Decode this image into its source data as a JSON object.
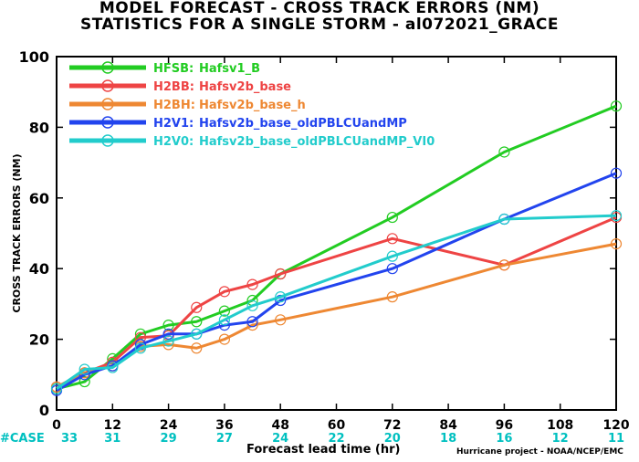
{
  "title_line1": "MODEL FORECAST - CROSS TRACK ERRORS (NM)",
  "title_line2": "STATISTICS FOR A SINGLE STORM - al072021_GRACE",
  "credit": "Hurricane project - NOAA/NCEP/EMC",
  "case_label": "#CASE",
  "case_color": "#00c0c0",
  "chart_data": {
    "type": "line",
    "xlabel": "Forecast lead time (hr)",
    "ylabel": "CROSS TRACK ERRORS (NM)",
    "xlim": [
      0,
      120
    ],
    "ylim": [
      0,
      100
    ],
    "xticks": [
      0,
      12,
      24,
      36,
      48,
      60,
      72,
      84,
      96,
      108,
      120
    ],
    "yticks": [
      0,
      20,
      40,
      60,
      80,
      100
    ],
    "grid": false,
    "legend_position": "top-left",
    "cases": [
      33,
      31,
      29,
      27,
      24,
      22,
      20,
      18,
      16,
      12,
      11
    ],
    "series": [
      {
        "name": "HFSB:",
        "desc": "Hafsv1_B",
        "color": "#22cc22",
        "x": [
          0,
          6,
          12,
          18,
          24,
          30,
          36,
          42,
          48,
          72,
          96,
          120
        ],
        "y": [
          6,
          8,
          14.5,
          21.5,
          24,
          25,
          28,
          31,
          38.5,
          54.5,
          73,
          86
        ]
      },
      {
        "name": "H2BB:",
        "desc": "Hafsv2b_base",
        "color": "#ee4444",
        "x": [
          0,
          6,
          12,
          18,
          24,
          30,
          36,
          42,
          48,
          72,
          96,
          120
        ],
        "y": [
          6.5,
          10.5,
          13.5,
          20.5,
          21,
          29,
          33.5,
          35.5,
          38.5,
          48.5,
          41,
          54.5
        ]
      },
      {
        "name": "H2BH:",
        "desc": "Hafsv2b_base_h",
        "color": "#ee8833",
        "x": [
          0,
          6,
          12,
          18,
          24,
          30,
          36,
          42,
          48,
          72,
          96,
          120
        ],
        "y": [
          6.5,
          10.5,
          12.5,
          18,
          18.5,
          17.5,
          20,
          24,
          25.5,
          32,
          41,
          47
        ]
      },
      {
        "name": "H2V1:",
        "desc": "Hafsv2b_base_oldPBLCUandMP",
        "color": "#2244ee",
        "x": [
          0,
          6,
          12,
          18,
          24,
          30,
          36,
          42,
          48,
          72,
          96,
          120
        ],
        "y": [
          5.5,
          10,
          12.5,
          18.5,
          21.5,
          21.5,
          24,
          25,
          31,
          40,
          54,
          67
        ]
      },
      {
        "name": "H2V0:",
        "desc": "Hafsv2b_base_oldPBLCUandMP_VI0",
        "color": "#22cccc",
        "x": [
          0,
          6,
          12,
          18,
          24,
          30,
          36,
          42,
          48,
          72,
          96,
          120
        ],
        "y": [
          6,
          11.5,
          12,
          17.5,
          19.5,
          21.5,
          25.5,
          29.5,
          32,
          43.5,
          54,
          55
        ]
      }
    ]
  }
}
